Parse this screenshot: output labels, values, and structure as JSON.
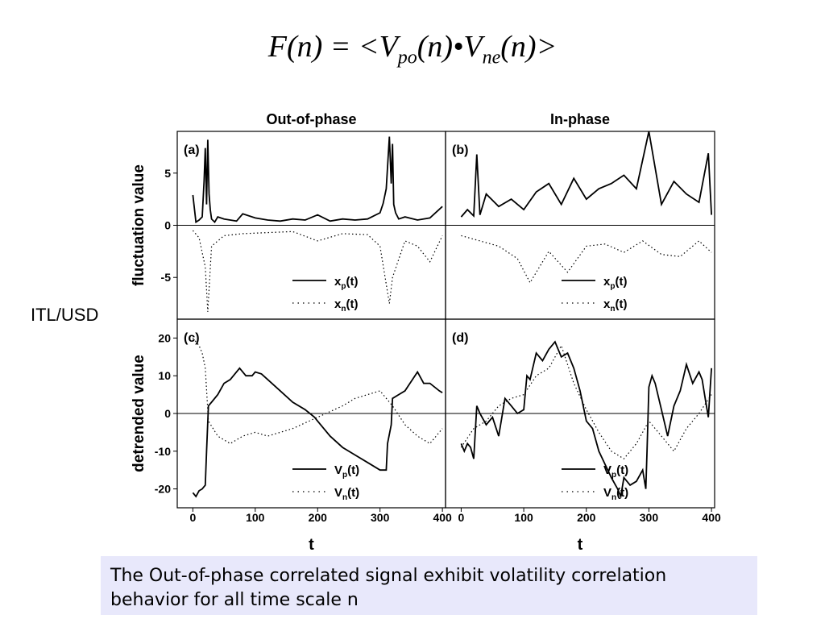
{
  "formula": {
    "F": "F",
    "n_open": "(n)",
    "eq": " = <",
    "V": "V",
    "po": "po",
    "n1": "(n)",
    "dot": "•",
    "V2": "V",
    "ne": "ne",
    "n2": "(n)",
    "close": ">"
  },
  "side_label": "ITL/USD",
  "caption": "The Out-of-phase correlated signal exhibit volatility correlation behavior for all time scale n",
  "colors": {
    "caption_bg": "#e8e8fb",
    "line": "#000000"
  },
  "chart_data": [
    {
      "type": "line",
      "panel": "(a)",
      "column_title": "Out-of-phase",
      "ylabel": "fluctuation value",
      "xlim": [
        -25,
        405
      ],
      "ylim": [
        -9,
        9
      ],
      "yticks": [
        -5,
        0,
        5
      ],
      "legend": [
        "x_p(t)",
        "x_n(t)"
      ],
      "series": [
        {
          "name": "x_p(t)",
          "style": "solid",
          "x": [
            0,
            5,
            10,
            15,
            18,
            20,
            22,
            24,
            26,
            28,
            30,
            35,
            40,
            50,
            60,
            70,
            80,
            100,
            120,
            140,
            160,
            180,
            200,
            220,
            240,
            260,
            280,
            300,
            305,
            310,
            315,
            318,
            320,
            322,
            325,
            330,
            340,
            360,
            380,
            400
          ],
          "values": [
            2.9,
            0.3,
            0.5,
            0.8,
            4.2,
            7.4,
            2.0,
            8.2,
            3.0,
            1.5,
            0.6,
            0.3,
            0.8,
            0.6,
            0.5,
            0.4,
            1.1,
            0.7,
            0.5,
            0.4,
            0.6,
            0.5,
            1.0,
            0.4,
            0.6,
            0.5,
            0.6,
            1.2,
            2.1,
            3.5,
            8.5,
            4.0,
            7.8,
            2.0,
            1.2,
            0.6,
            0.8,
            0.5,
            0.7,
            1.8
          ]
        },
        {
          "name": "x_n(t)",
          "style": "dotted",
          "x": [
            0,
            10,
            20,
            24,
            30,
            50,
            80,
            120,
            160,
            200,
            240,
            280,
            300,
            315,
            320,
            340,
            360,
            380,
            400
          ],
          "values": [
            -0.5,
            -1.2,
            -4.0,
            -8.3,
            -2.0,
            -1.0,
            -0.8,
            -0.7,
            -0.6,
            -1.5,
            -0.8,
            -0.9,
            -2.0,
            -7.5,
            -5.0,
            -1.5,
            -2.0,
            -3.5,
            -1.0
          ]
        }
      ]
    },
    {
      "type": "line",
      "panel": "(b)",
      "column_title": "In-phase",
      "ylabel": "",
      "xlim": [
        -25,
        405
      ],
      "ylim": [
        -9,
        9
      ],
      "legend": [
        "x_p(t)",
        "x_n(t)"
      ],
      "series": [
        {
          "name": "x_p(t)",
          "style": "solid",
          "x": [
            0,
            10,
            20,
            25,
            30,
            40,
            60,
            80,
            100,
            120,
            140,
            160,
            180,
            200,
            220,
            240,
            260,
            280,
            300,
            320,
            340,
            360,
            380,
            395,
            400
          ],
          "values": [
            0.8,
            1.5,
            0.9,
            6.8,
            1.0,
            3.0,
            1.8,
            2.5,
            1.5,
            3.2,
            4.0,
            2.0,
            4.5,
            2.5,
            3.5,
            4.0,
            4.8,
            3.5,
            9.0,
            2.0,
            4.2,
            3.0,
            2.2,
            6.9,
            1.0
          ]
        },
        {
          "name": "x_n(t)",
          "style": "dotted",
          "x": [
            0,
            30,
            60,
            90,
            110,
            140,
            170,
            200,
            230,
            260,
            290,
            320,
            350,
            380,
            400
          ],
          "values": [
            -1.0,
            -1.5,
            -2.0,
            -3.2,
            -5.5,
            -2.5,
            -4.5,
            -2.0,
            -1.8,
            -2.6,
            -1.5,
            -2.8,
            -3.0,
            -1.5,
            -2.6
          ]
        }
      ]
    },
    {
      "type": "line",
      "panel": "(c)",
      "ylabel": "detrended value",
      "xlabel": "t",
      "xlim": [
        -25,
        405
      ],
      "ylim": [
        -25,
        25
      ],
      "xticks": [
        0,
        100,
        200,
        300,
        400
      ],
      "yticks": [
        -20,
        -10,
        0,
        10,
        20
      ],
      "legend": [
        "V_p(t)",
        "V_n(t)"
      ],
      "series": [
        {
          "name": "V_p(t)",
          "style": "solid",
          "x": [
            0,
            5,
            10,
            15,
            20,
            22,
            25,
            30,
            40,
            50,
            60,
            75,
            85,
            95,
            100,
            110,
            120,
            140,
            160,
            180,
            195,
            200,
            220,
            240,
            260,
            280,
            300,
            310,
            312,
            318,
            320,
            330,
            340,
            360,
            370,
            380,
            395,
            400
          ],
          "values": [
            -21,
            -22,
            -20.5,
            -20,
            -19,
            -10,
            2,
            3,
            5,
            8,
            9,
            12,
            10,
            10,
            11,
            10.5,
            9,
            6,
            3,
            1,
            -1,
            -2,
            -6,
            -9,
            -11,
            -13,
            -15,
            -15,
            -8,
            -3,
            4,
            5,
            6,
            11,
            8,
            8,
            6,
            5.5
          ]
        },
        {
          "name": "V_n(t)",
          "style": "dotted",
          "x": [
            0,
            10,
            15,
            20,
            25,
            40,
            50,
            60,
            80,
            100,
            120,
            160,
            200,
            240,
            260,
            280,
            300,
            320,
            340,
            360,
            380,
            400
          ],
          "values": [
            20,
            18,
            16,
            12,
            -2,
            -6,
            -7,
            -8,
            -6,
            -5,
            -6,
            -4,
            -1,
            2,
            4,
            5,
            6,
            2,
            -3,
            -6,
            -8,
            -4
          ]
        }
      ]
    },
    {
      "type": "line",
      "panel": "(d)",
      "ylabel": "",
      "xlabel": "t",
      "xlim": [
        -25,
        405
      ],
      "ylim": [
        -25,
        25
      ],
      "xticks": [
        0,
        100,
        200,
        300,
        400
      ],
      "legend": [
        "V_p(t)",
        "V_n(t)"
      ],
      "series": [
        {
          "name": "V_p(t)",
          "style": "solid",
          "x": [
            0,
            5,
            10,
            15,
            20,
            25,
            30,
            40,
            50,
            60,
            70,
            80,
            90,
            100,
            105,
            110,
            120,
            130,
            140,
            150,
            160,
            170,
            180,
            190,
            200,
            210,
            220,
            240,
            250,
            255,
            260,
            270,
            280,
            290,
            295,
            297,
            300,
            305,
            310,
            320,
            330,
            340,
            350,
            360,
            370,
            380,
            385,
            390,
            395,
            400
          ],
          "values": [
            -8,
            -10,
            -8,
            -9,
            -12,
            2,
            0,
            -3,
            -1,
            -6,
            4,
            2,
            0,
            1,
            10,
            9,
            16,
            14,
            17,
            19,
            15,
            16,
            12,
            6,
            -2,
            -4,
            -10,
            -17,
            -20,
            -22,
            -17,
            -19,
            -18,
            -15,
            -20,
            -10,
            7,
            10,
            8,
            1,
            -6,
            2,
            6,
            13,
            8,
            11,
            9,
            4,
            -1,
            12
          ]
        },
        {
          "name": "V_n(t)",
          "style": "dotted",
          "x": [
            0,
            20,
            40,
            60,
            80,
            100,
            120,
            140,
            160,
            180,
            200,
            220,
            240,
            260,
            280,
            300,
            320,
            340,
            360,
            380,
            400
          ],
          "values": [
            -9,
            -4,
            -2,
            2,
            4,
            5,
            10,
            12,
            18,
            8,
            1,
            -5,
            -10,
            -12,
            -8,
            -2,
            -6,
            -10,
            -4,
            0,
            5
          ]
        }
      ]
    }
  ]
}
